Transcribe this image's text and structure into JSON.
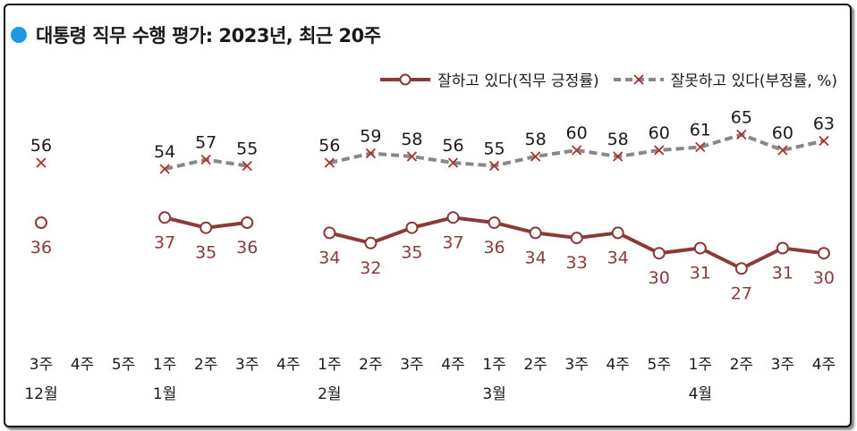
{
  "header": {
    "title": "대통령 직무 수행 평가: 2023년, 최근 20주"
  },
  "colors": {
    "title_dot": "#1e9be0",
    "approve": "#8b3a3a",
    "disapprove": "#888888",
    "disapprove_marker": "#b03030"
  },
  "legend": {
    "approve_label": "잘하고 있다(직무 긍정률)",
    "disapprove_label": "잘못하고 있다(부정률, %)"
  },
  "chart_data": {
    "type": "line",
    "title": "대통령 직무 수행 평가: 2023년, 최근 20주",
    "x": [
      "3주",
      "4주",
      "5주",
      "1주",
      "2주",
      "3주",
      "4주",
      "1주",
      "2주",
      "3주",
      "4주",
      "1주",
      "2주",
      "3주",
      "4주",
      "5주",
      "1주",
      "2주",
      "3주",
      "4주"
    ],
    "months": [
      {
        "label": "12월",
        "index": 0
      },
      {
        "label": "1월",
        "index": 3
      },
      {
        "label": "2월",
        "index": 7
      },
      {
        "label": "3월",
        "index": 11
      },
      {
        "label": "4월",
        "index": 16
      }
    ],
    "series": [
      {
        "name": "잘하고 있다(직무 긍정률)",
        "values": [
          36,
          null,
          null,
          37,
          35,
          36,
          null,
          34,
          32,
          35,
          37,
          36,
          34,
          33,
          34,
          30,
          31,
          27,
          31,
          30
        ]
      },
      {
        "name": "잘못하고 있다(부정률, %)",
        "values": [
          56,
          null,
          null,
          54,
          57,
          55,
          null,
          56,
          59,
          58,
          56,
          55,
          58,
          60,
          58,
          60,
          61,
          65,
          60,
          63
        ]
      }
    ],
    "legend_position": "top-right",
    "grid": false
  }
}
